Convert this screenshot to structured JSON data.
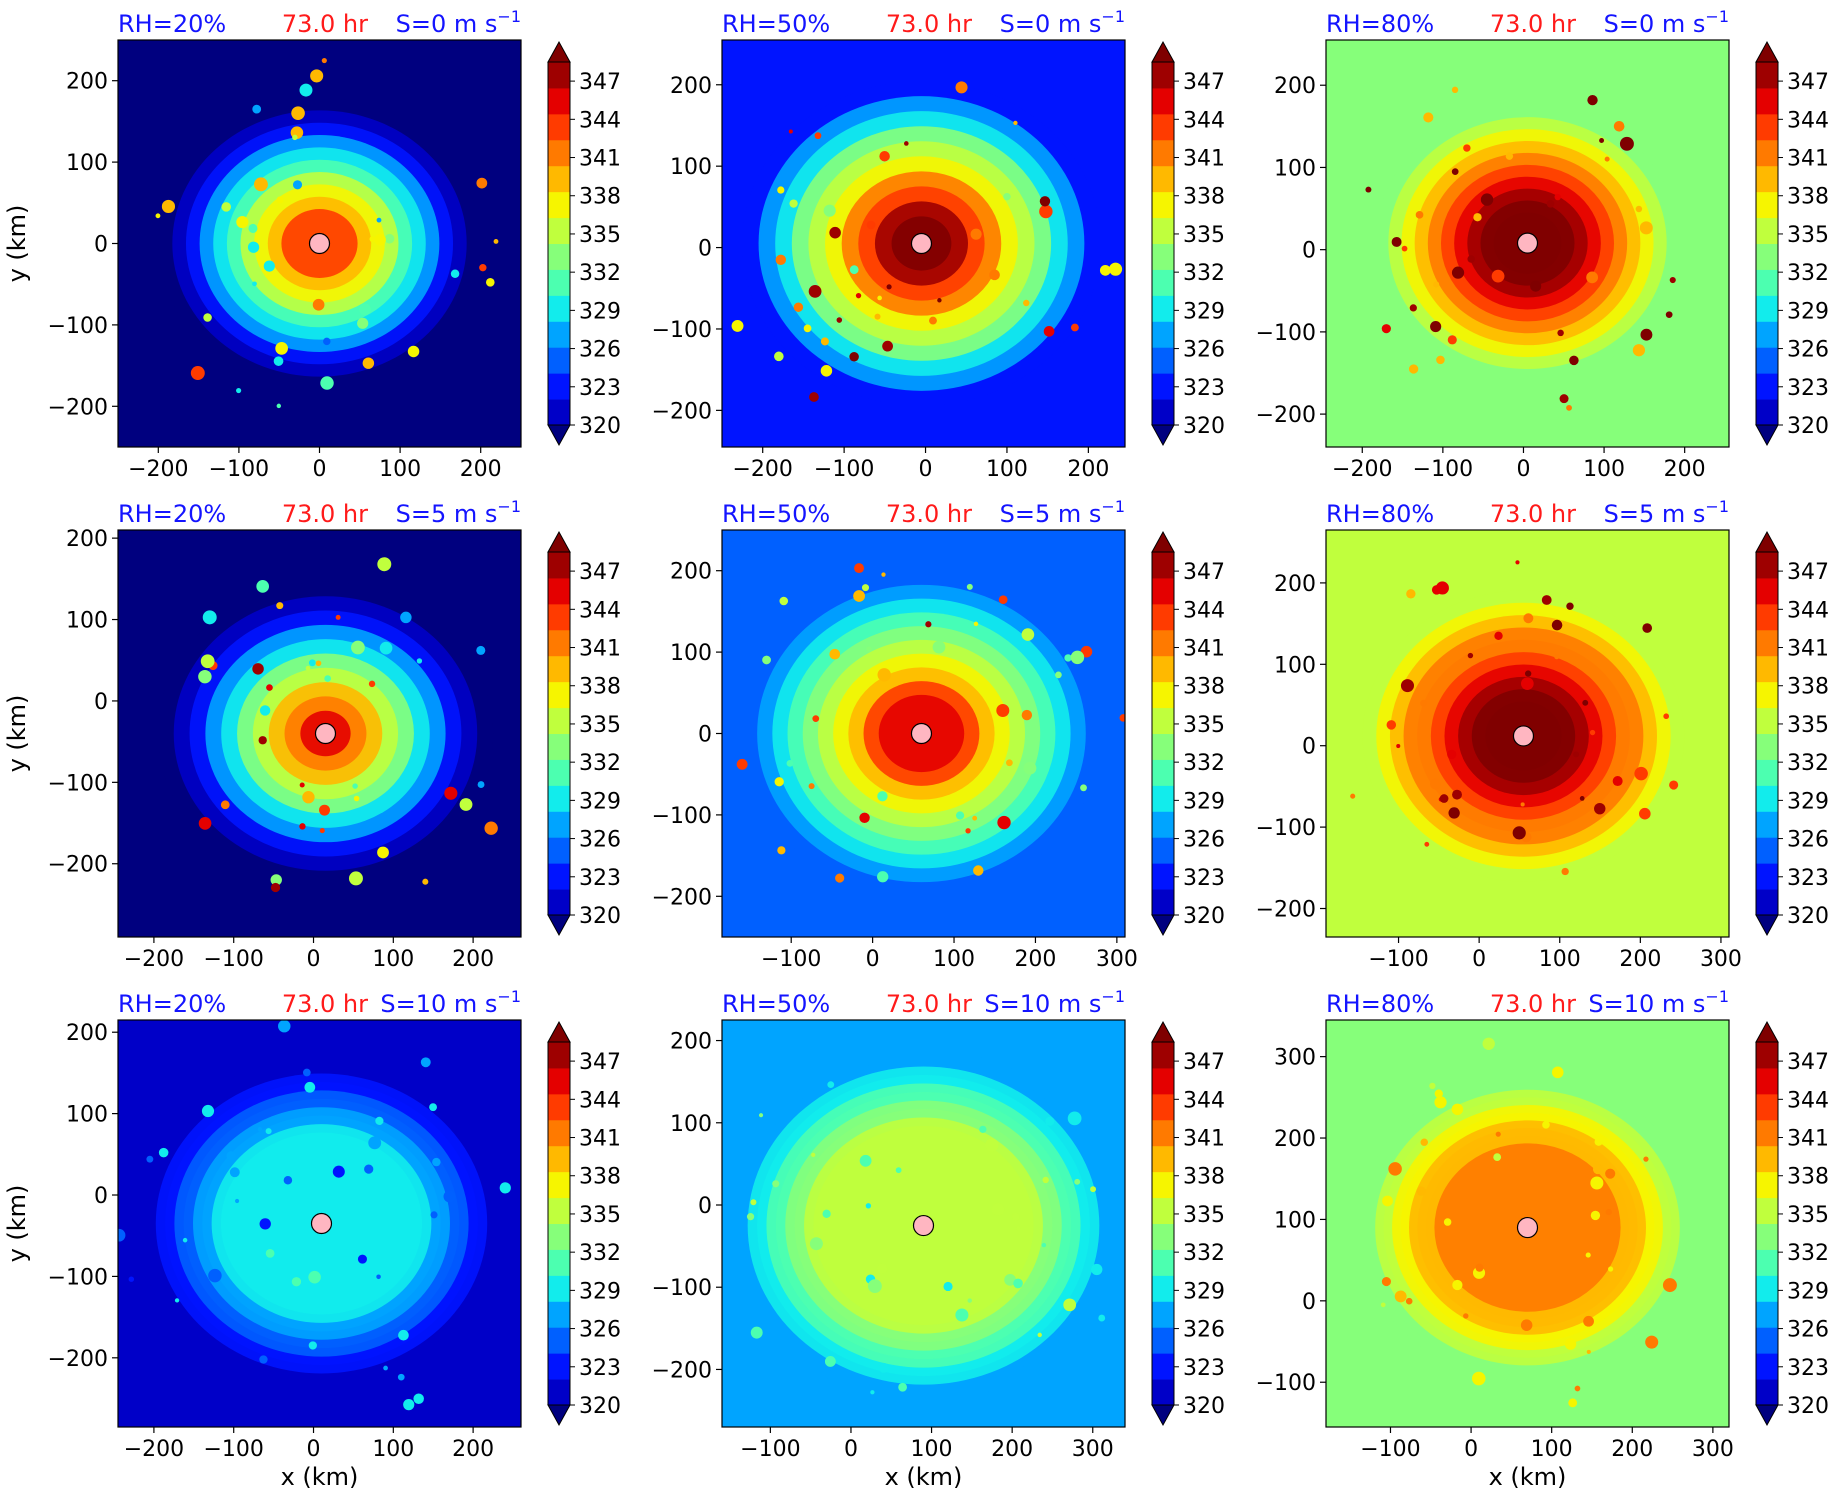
{
  "figure": {
    "cbar_ticks": [
      "320",
      "323",
      "326",
      "329",
      "332",
      "335",
      "338",
      "341",
      "344",
      "347"
    ],
    "colormap": [
      "#00007f",
      "#0000c8",
      "#0014ff",
      "#0060ff",
      "#00a4ff",
      "#12ecec",
      "#4cffb0",
      "#86ff7a",
      "#c0ff3d",
      "#f6f500",
      "#ffb900",
      "#ff7a00",
      "#ff3b00",
      "#e40000",
      "#9e0000",
      "#7f0000"
    ],
    "marker_color": "#ffb6c1"
  },
  "chart_data": [
    {
      "type": "heatmap",
      "rh": "RH=20%",
      "time": "73.0 hr",
      "shear": "S=0 m s",
      "shear_exp": "−1",
      "xlabel": "",
      "ylabel": "y (km)",
      "xlim": [
        -250,
        250
      ],
      "ylim": [
        -250,
        250
      ],
      "xticks": [
        -200,
        -100,
        0,
        100,
        200
      ],
      "yticks": [
        -200,
        -100,
        0,
        100,
        200
      ],
      "center": [
        0,
        0
      ],
      "background_theta_e": 320,
      "core_theta_e": 341,
      "core_radius_km": 45,
      "spread_km": 190
    },
    {
      "type": "heatmap",
      "rh": "RH=50%",
      "time": "73.0 hr",
      "shear": "S=0 m s",
      "shear_exp": "−1",
      "xlabel": "",
      "ylabel": "",
      "xlim": [
        -250,
        245
      ],
      "ylim": [
        -245,
        255
      ],
      "xticks": [
        -200,
        -100,
        0,
        100,
        200
      ],
      "yticks": [
        -200,
        -100,
        0,
        100,
        200
      ],
      "center": [
        -5,
        5
      ],
      "background_theta_e": 325,
      "core_theta_e": 347,
      "core_radius_km": 35,
      "spread_km": 210
    },
    {
      "type": "heatmap",
      "rh": "RH=80%",
      "time": "73.0 hr",
      "shear": "S=0 m s",
      "shear_exp": "−1",
      "xlabel": "",
      "ylabel": "",
      "xlim": [
        -245,
        255
      ],
      "ylim": [
        -240,
        255
      ],
      "xticks": [
        -200,
        -100,
        0,
        100,
        200
      ],
      "yticks": [
        -200,
        -100,
        0,
        100,
        200
      ],
      "center": [
        5,
        8
      ],
      "background_theta_e": 333,
      "core_theta_e": 348,
      "core_radius_km": 40,
      "spread_km": 180
    },
    {
      "type": "heatmap",
      "rh": "RH=20%",
      "time": "73.0 hr",
      "shear": "S=5 m s",
      "shear_exp": "−1",
      "xlabel": "",
      "ylabel": "y (km)",
      "xlim": [
        -245,
        260
      ],
      "ylim": [
        -290,
        210
      ],
      "xticks": [
        -200,
        -100,
        0,
        100,
        200
      ],
      "yticks": [
        -200,
        -100,
        0,
        100,
        200
      ],
      "center": [
        15,
        -40
      ],
      "background_theta_e": 320,
      "core_theta_e": 343,
      "core_radius_km": 30,
      "spread_km": 200
    },
    {
      "type": "heatmap",
      "rh": "RH=50%",
      "time": "73.0 hr",
      "shear": "S=5 m s",
      "shear_exp": "−1",
      "xlabel": "",
      "ylabel": "",
      "xlim": [
        -185,
        310
      ],
      "ylim": [
        -250,
        250
      ],
      "xticks": [
        -100,
        0,
        100,
        200,
        300
      ],
      "yticks": [
        -200,
        -100,
        0,
        100,
        200
      ],
      "center": [
        60,
        0
      ],
      "background_theta_e": 326,
      "core_theta_e": 343,
      "core_radius_km": 50,
      "spread_km": 210
    },
    {
      "type": "heatmap",
      "rh": "RH=80%",
      "time": "73.0 hr",
      "shear": "S=5 m s",
      "shear_exp": "−1",
      "xlabel": "",
      "ylabel": "",
      "xlim": [
        -190,
        310
      ],
      "ylim": [
        -235,
        265
      ],
      "xticks": [
        -100,
        0,
        100,
        200,
        300
      ],
      "yticks": [
        -200,
        -100,
        0,
        100,
        200
      ],
      "center": [
        55,
        12
      ],
      "background_theta_e": 335,
      "core_theta_e": 348,
      "core_radius_km": 45,
      "spread_km": 190
    },
    {
      "type": "heatmap",
      "rh": "RH=20%",
      "time": "73.0 hr",
      "shear": "S=10 m s",
      "shear_exp": "−1",
      "xlabel": "x (km)",
      "ylabel": "y (km)",
      "xlim": [
        -245,
        260
      ],
      "ylim": [
        -285,
        215
      ],
      "xticks": [
        -200,
        -100,
        0,
        100,
        200
      ],
      "yticks": [
        -200,
        -100,
        0,
        100,
        200
      ],
      "center": [
        10,
        -35
      ],
      "background_theta_e": 322,
      "core_theta_e": 330,
      "core_radius_km": 120,
      "spread_km": 220
    },
    {
      "type": "heatmap",
      "rh": "RH=50%",
      "time": "73.0 hr",
      "shear": "S=10 m s",
      "shear_exp": "−1",
      "xlabel": "x (km)",
      "ylabel": "",
      "xlim": [
        -160,
        340
      ],
      "ylim": [
        -270,
        225
      ],
      "xticks": [
        -100,
        0,
        100,
        200,
        300
      ],
      "yticks": [
        -200,
        -100,
        0,
        100,
        200
      ],
      "center": [
        90,
        -25
      ],
      "background_theta_e": 327,
      "core_theta_e": 335,
      "core_radius_km": 130,
      "spread_km": 230
    },
    {
      "type": "heatmap",
      "rh": "RH=80%",
      "time": "73.0 hr",
      "shear": "S=10 m s",
      "shear_exp": "−1",
      "xlabel": "x (km)",
      "ylabel": "",
      "xlim": [
        -180,
        320
      ],
      "ylim": [
        -155,
        345
      ],
      "xticks": [
        -100,
        0,
        100,
        200,
        300
      ],
      "yticks": [
        -100,
        0,
        100,
        200,
        300
      ],
      "center": [
        70,
        90
      ],
      "background_theta_e": 333,
      "core_theta_e": 340,
      "core_radius_km": 110,
      "spread_km": 200
    }
  ]
}
